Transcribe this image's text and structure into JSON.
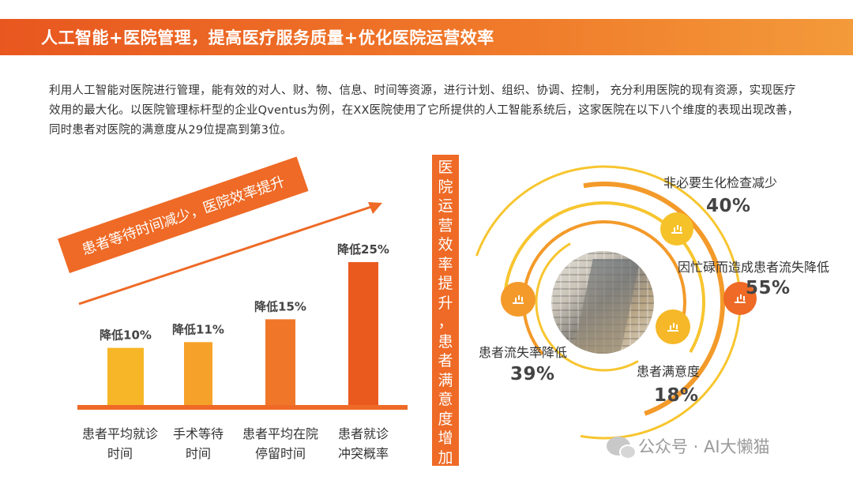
{
  "header": {
    "title": "人工智能+医院管理，提高医疗服务质量+优化医院运营效率"
  },
  "intro": {
    "text": "利用人工智能对医院进行管理，能有效的对人、财、物、信息、时间等资源，进行计划、组织、协调、控制， 充分利用医院的现有资源，实现医疗效用的最大化。以医院管理标杆型的企业Qventus为例，在XX医院使用了它所提供的人工智能系统后，这家医院在以下八个维度的表现出现改善，同时患者对医院的满意度从29位提高到第3位。"
  },
  "banner": {
    "text": "患者等待时间减少，医院效率提升"
  },
  "vertical_banner": {
    "text": "医院运营效率提升，患者满意度增加"
  },
  "chart_data": [
    {
      "type": "bar",
      "categories": [
        [
          "患者平均就诊",
          "时间"
        ],
        [
          "手术等待",
          "时间"
        ],
        [
          "患者平均在院",
          "停留时间"
        ],
        [
          "患者就诊",
          "冲突概率"
        ]
      ],
      "values": [
        10,
        11,
        15,
        25
      ],
      "data_labels": [
        "降低10%",
        "降低11%",
        "降低15%",
        "降低25%"
      ],
      "colors": [
        "#f6b628",
        "#f6a22a",
        "#f0772a",
        "#ea5a1f"
      ],
      "ylim": [
        0,
        25
      ],
      "grid": false
    },
    {
      "type": "scatter",
      "items": [
        {
          "name": "非必要生化检查减少",
          "value": "40%"
        },
        {
          "name": "因忙碌而造成患者流失降低",
          "value": "55%"
        },
        {
          "name": "患者流失率降低",
          "value": "39%"
        },
        {
          "name": "患者满意度",
          "value": "18%"
        }
      ]
    }
  ],
  "colors": {
    "accent": "#ee6a26",
    "ring_light": "#f7c52f",
    "ring_dark": "#ee6a26"
  },
  "watermark": {
    "text": "公众号 · AI大懒猫"
  }
}
